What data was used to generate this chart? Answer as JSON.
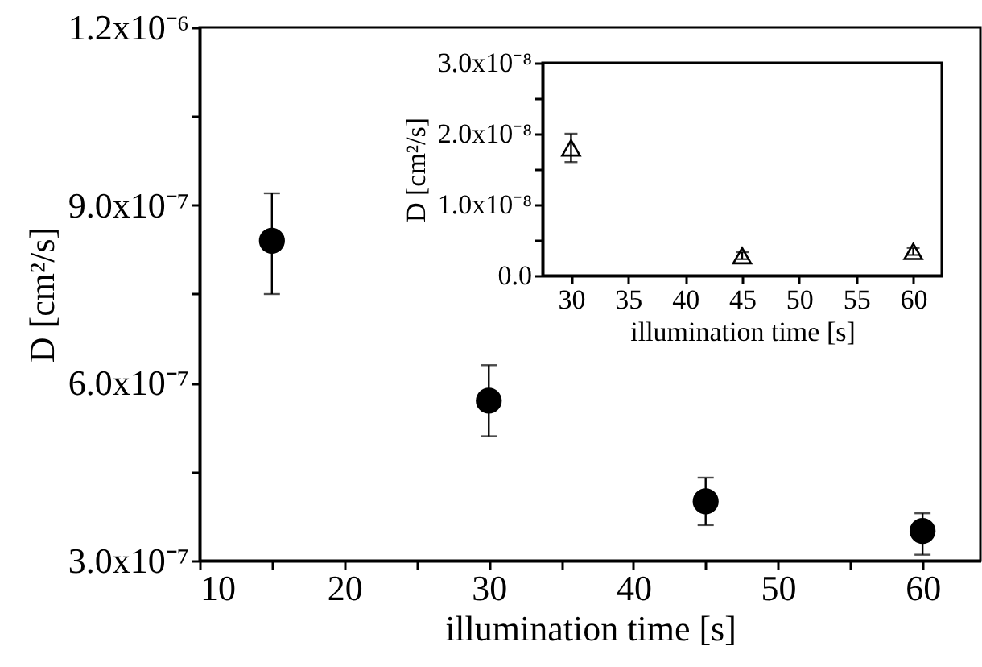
{
  "chart_data": [
    {
      "type": "scatter",
      "xlabel": "illumination time [s]",
      "ylabel": "D [cm²/s]",
      "x": [
        15,
        30,
        45,
        60
      ],
      "values": [
        8.4e-07,
        5.7e-07,
        4e-07,
        3.5e-07
      ],
      "errors": [
        [
          7.5e-07,
          9.2e-07
        ],
        [
          5.1e-07,
          6.3e-07
        ],
        [
          3.6e-07,
          4.4e-07
        ],
        [
          3.1e-07,
          3.8e-07
        ]
      ],
      "color": "#000000",
      "marker": "circle",
      "xlim": [
        10,
        64
      ],
      "xticks": [
        10,
        {
          "value": 15,
          "label": null
        },
        20,
        {
          "value": 25,
          "label": null
        },
        30,
        {
          "value": 35,
          "label": null
        },
        40,
        {
          "value": 45,
          "label": null
        },
        50,
        {
          "value": 55,
          "label": null
        },
        60
      ],
      "ylim": [
        3e-07,
        1.2e-06
      ],
      "yticks": [
        {
          "value": 3e-07,
          "label": "3.0x10⁻⁷"
        },
        {
          "value": 4.5e-07,
          "label": null
        },
        {
          "value": 6e-07,
          "label": "6.0x10⁻⁷"
        },
        {
          "value": 7.5e-07,
          "label": null
        },
        {
          "value": 9e-07,
          "label": "9.0x10⁻⁷"
        },
        {
          "value": 1.05e-06,
          "label": null
        },
        {
          "value": 1.2e-06,
          "label": "1.2x10⁻⁶"
        }
      ],
      "grid": false
    },
    {
      "type": "scatter",
      "xlabel": "illumination time [s]",
      "ylabel": "D [cm²/s]",
      "x": [
        30,
        45,
        60
      ],
      "values": [
        1.8e-08,
        2.8e-09,
        3.4e-09
      ],
      "errors": [
        [
          1.6e-08,
          2e-08
        ],
        [
          2.3e-09,
          3.3e-09
        ],
        [
          2.9e-09,
          3.9e-09
        ]
      ],
      "color": "#000000",
      "marker": "triangle",
      "xlim": [
        27.5,
        62.5
      ],
      "xticks": [
        30,
        35,
        40,
        45,
        50,
        55,
        60
      ],
      "ylim": [
        0,
        3e-08
      ],
      "yticks": [
        {
          "value": 0,
          "label": "0.0"
        },
        {
          "value": 5e-09,
          "label": null
        },
        {
          "value": 1e-08,
          "label": "1.0x10⁻⁸"
        },
        {
          "value": 1.5e-08,
          "label": null
        },
        {
          "value": 2e-08,
          "label": "2.0x10⁻⁸"
        },
        {
          "value": 2.5e-08,
          "label": null
        },
        {
          "value": 3e-08,
          "label": "3.0x10⁻⁸"
        }
      ],
      "grid": false
    }
  ]
}
